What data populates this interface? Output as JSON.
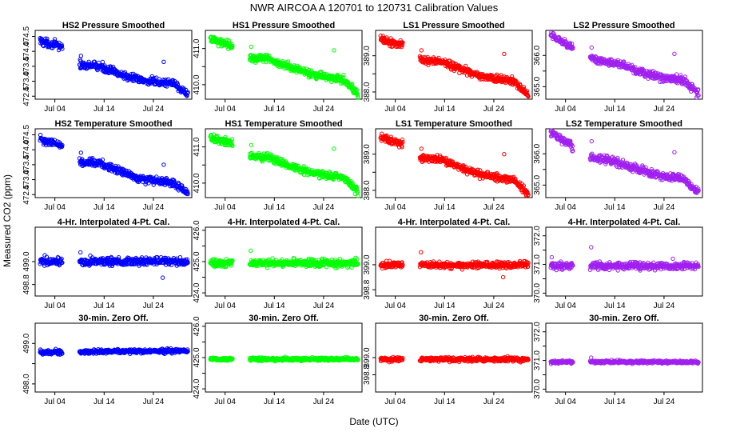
{
  "figure": {
    "title": "NWR   AIRCOA A   120701 to 120731   Calibration Values",
    "xlabel": "Date (UTC)",
    "ylabel": "Measured CO2 (ppm)",
    "x_tick_labels": [
      "Jul 04",
      "Jul 14",
      "Jul 24"
    ]
  },
  "chart_data": [
    {
      "type": "scatter",
      "title": "HS2 Pressure Smoothed",
      "series": "HS2",
      "color": "#0000ff",
      "row": 0,
      "col": 0,
      "ylim": [
        472.4,
        474.7
      ],
      "yticks": [
        472.5,
        473.0,
        473.5,
        474.0,
        474.5
      ],
      "ytick_labels": [
        "472.5",
        "473.0",
        "473.5",
        "474.0",
        "474.5"
      ],
      "xlim": [
        0,
        31.8
      ],
      "segments": [
        [
          1,
          5.5
        ],
        [
          9,
          31
        ]
      ],
      "trend": [
        [
          1,
          474.35
        ],
        [
          5.5,
          474.15
        ],
        [
          9,
          473.55
        ],
        [
          13,
          473.5
        ],
        [
          17,
          473.25
        ],
        [
          21,
          473.05
        ],
        [
          25,
          472.95
        ],
        [
          28,
          472.95
        ],
        [
          31,
          472.55
        ]
      ],
      "noise": 0.13,
      "outliers": [
        [
          9.3,
          473.85
        ],
        [
          26.1,
          473.65
        ]
      ]
    },
    {
      "type": "scatter",
      "title": "HS1 Pressure Smoothed",
      "series": "HS1",
      "color": "#00ff00",
      "row": 0,
      "col": 1,
      "ylim": [
        409.6,
        411.5
      ],
      "yticks": [
        410.0,
        410.5,
        411.0
      ],
      "ytick_labels": [
        "410.0",
        "",
        "411.0"
      ],
      "xlim": [
        0,
        31.8
      ],
      "segments": [
        [
          1,
          5.5
        ],
        [
          9,
          31
        ]
      ],
      "trend": [
        [
          1,
          411.25
        ],
        [
          5.5,
          411.1
        ],
        [
          9,
          410.75
        ],
        [
          13,
          410.7
        ],
        [
          17,
          410.5
        ],
        [
          21,
          410.3
        ],
        [
          25,
          410.2
        ],
        [
          28,
          410.15
        ],
        [
          31,
          409.75
        ]
      ],
      "noise": 0.1,
      "outliers": [
        [
          9.3,
          411.05
        ],
        [
          26.1,
          410.95
        ]
      ]
    },
    {
      "type": "scatter",
      "title": "LS1 Pressure Smoothed",
      "series": "LS1",
      "color": "#ff0000",
      "row": 0,
      "col": 2,
      "ylim": [
        387.8,
        389.7
      ],
      "yticks": [
        388.0,
        388.5,
        389.0
      ],
      "ytick_labels": [
        "388.0",
        "",
        "389.0"
      ],
      "xlim": [
        0,
        31.8
      ],
      "segments": [
        [
          1,
          5.5
        ],
        [
          9,
          31
        ]
      ],
      "trend": [
        [
          1,
          389.45
        ],
        [
          5.5,
          389.3
        ],
        [
          9,
          388.9
        ],
        [
          13,
          388.85
        ],
        [
          17,
          388.65
        ],
        [
          21,
          388.45
        ],
        [
          25,
          388.35
        ],
        [
          28,
          388.3
        ],
        [
          31,
          387.9
        ]
      ],
      "noise": 0.1,
      "outliers": [
        [
          9.3,
          389.15
        ],
        [
          26.1,
          389.05
        ]
      ]
    },
    {
      "type": "scatter",
      "title": "LS2 Pressure Smoothed",
      "series": "LS2",
      "color": "#a020f0",
      "row": 0,
      "col": 3,
      "ylim": [
        364.6,
        366.8
      ],
      "yticks": [
        365.0,
        365.5,
        366.0
      ],
      "ytick_labels": [
        "365.0",
        "",
        "366.0"
      ],
      "xlim": [
        0,
        31.8
      ],
      "segments": [
        [
          1,
          5.5
        ],
        [
          9,
          31
        ]
      ],
      "trend": [
        [
          1,
          366.65
        ],
        [
          5.5,
          366.25
        ],
        [
          9,
          365.9
        ],
        [
          13,
          365.8
        ],
        [
          17,
          365.6
        ],
        [
          21,
          365.4
        ],
        [
          25,
          365.25
        ],
        [
          28,
          365.2
        ],
        [
          31,
          364.75
        ]
      ],
      "noise": 0.12,
      "outliers": [
        [
          9.3,
          366.25
        ],
        [
          26.1,
          366.05
        ]
      ]
    },
    {
      "type": "scatter",
      "title": "HS2 Temperature Smoothed",
      "series": "HS2",
      "color": "#0000ff",
      "row": 1,
      "col": 0,
      "ylim": [
        472.4,
        474.7
      ],
      "yticks": [
        472.5,
        473.0,
        473.5,
        474.0,
        474.5
      ],
      "ytick_labels": [
        "472.5",
        "473.0",
        "473.5",
        "474.0",
        "474.5"
      ],
      "xlim": [
        0,
        31.8
      ],
      "segments": [
        [
          1,
          5.5
        ],
        [
          9,
          31
        ]
      ],
      "trend": [
        [
          1,
          474.35
        ],
        [
          5.5,
          474.15
        ],
        [
          9,
          473.6
        ],
        [
          13,
          473.55
        ],
        [
          17,
          473.3
        ],
        [
          21,
          473.05
        ],
        [
          25,
          472.95
        ],
        [
          28,
          472.9
        ],
        [
          31,
          472.55
        ]
      ],
      "noise": 0.12,
      "outliers": [
        [
          9.3,
          473.9
        ],
        [
          26.1,
          473.5
        ]
      ]
    },
    {
      "type": "scatter",
      "title": "HS1 Temperature Smoothed",
      "series": "HS1",
      "color": "#00ff00",
      "row": 1,
      "col": 1,
      "ylim": [
        409.6,
        411.5
      ],
      "yticks": [
        410.0,
        410.5,
        411.0
      ],
      "ytick_labels": [
        "410.0",
        "",
        "411.0"
      ],
      "xlim": [
        0,
        31.8
      ],
      "segments": [
        [
          1,
          5.5
        ],
        [
          9,
          31
        ]
      ],
      "trend": [
        [
          1,
          411.25
        ],
        [
          5.5,
          411.1
        ],
        [
          9,
          410.75
        ],
        [
          13,
          410.7
        ],
        [
          17,
          410.5
        ],
        [
          21,
          410.3
        ],
        [
          25,
          410.2
        ],
        [
          28,
          410.15
        ],
        [
          31,
          409.75
        ]
      ],
      "noise": 0.1,
      "outliers": [
        [
          9.3,
          411.05
        ],
        [
          26.1,
          410.95
        ]
      ]
    },
    {
      "type": "scatter",
      "title": "LS1 Temperature Smoothed",
      "series": "LS1",
      "color": "#ff0000",
      "row": 1,
      "col": 2,
      "ylim": [
        387.8,
        389.7
      ],
      "yticks": [
        388.0,
        388.5,
        389.0
      ],
      "ytick_labels": [
        "388.0",
        "",
        "389.0"
      ],
      "xlim": [
        0,
        31.8
      ],
      "segments": [
        [
          1,
          5.5
        ],
        [
          9,
          31
        ]
      ],
      "trend": [
        [
          1,
          389.45
        ],
        [
          5.5,
          389.3
        ],
        [
          9,
          388.9
        ],
        [
          13,
          388.85
        ],
        [
          17,
          388.65
        ],
        [
          21,
          388.45
        ],
        [
          25,
          388.35
        ],
        [
          28,
          388.3
        ],
        [
          31,
          387.9
        ]
      ],
      "noise": 0.1,
      "outliers": [
        [
          9.3,
          389.15
        ],
        [
          26.1,
          389.0
        ]
      ]
    },
    {
      "type": "scatter",
      "title": "LS2 Temperature Smoothed",
      "series": "LS2",
      "color": "#a020f0",
      "row": 1,
      "col": 3,
      "ylim": [
        364.6,
        366.8
      ],
      "yticks": [
        365.0,
        365.5,
        366.0
      ],
      "ytick_labels": [
        "365.0",
        "",
        "366.0"
      ],
      "xlim": [
        0,
        31.8
      ],
      "segments": [
        [
          1,
          5.5
        ],
        [
          9,
          31
        ]
      ],
      "trend": [
        [
          1,
          366.65
        ],
        [
          5.5,
          366.25
        ],
        [
          9,
          365.9
        ],
        [
          13,
          365.8
        ],
        [
          17,
          365.6
        ],
        [
          21,
          365.4
        ],
        [
          25,
          365.25
        ],
        [
          28,
          365.2
        ],
        [
          31,
          364.75
        ]
      ],
      "noise": 0.12,
      "outliers": [
        [
          9.3,
          366.4
        ],
        [
          26.1,
          366.05
        ]
      ]
    },
    {
      "type": "scatter",
      "title": "4-Hr. Interpolated 4-Pt. Cal.",
      "series": "HS2",
      "color": "#0000ff",
      "row": 2,
      "col": 0,
      "ylim": [
        498.7,
        499.3
      ],
      "yticks": [
        498.8,
        499.0
      ],
      "ytick_labels": [
        "498.8",
        "499.0"
      ],
      "xlim": [
        0,
        31.8
      ],
      "segments": [
        [
          1,
          5.5
        ],
        [
          9,
          31
        ]
      ],
      "trend": [
        [
          1,
          499.0
        ],
        [
          31,
          499.0
        ]
      ],
      "noise": 0.035,
      "outliers": [
        [
          9.2,
          499.08
        ],
        [
          25.9,
          498.86
        ]
      ]
    },
    {
      "type": "scatter",
      "title": "4-Hr. Interpolated 4-Pt. Cal.",
      "series": "HS1",
      "color": "#00ff00",
      "row": 2,
      "col": 1,
      "ylim": [
        423.9,
        426.1
      ],
      "yticks": [
        424.0,
        424.5,
        425.0,
        425.5,
        426.0
      ],
      "ytick_labels": [
        "424.0",
        "",
        "425.0",
        "",
        "426.0"
      ],
      "xlim": [
        0,
        31.8
      ],
      "segments": [
        [
          1,
          5.5
        ],
        [
          9,
          31
        ]
      ],
      "trend": [
        [
          1,
          424.95
        ],
        [
          31,
          424.95
        ]
      ],
      "noise": 0.12,
      "outliers": [
        [
          9.2,
          425.35
        ]
      ]
    },
    {
      "type": "scatter",
      "title": "4-Hr. Interpolated 4-Pt. Cal.",
      "series": "LS1",
      "color": "#ff0000",
      "row": 2,
      "col": 2,
      "ylim": [
        398.75,
        399.3
      ],
      "yticks": [
        398.8,
        399.0
      ],
      "ytick_labels": [
        "398.8",
        "399.0"
      ],
      "xlim": [
        0,
        31.8
      ],
      "segments": [
        [
          1,
          5.5
        ],
        [
          9,
          31
        ]
      ],
      "trend": [
        [
          1,
          399.0
        ],
        [
          31,
          399.0
        ]
      ],
      "noise": 0.025,
      "outliers": [
        [
          9.2,
          399.1
        ],
        [
          25.9,
          398.9
        ]
      ]
    },
    {
      "type": "scatter",
      "title": "4-Hr. Interpolated 4-Pt. Cal.",
      "series": "LS2",
      "color": "#a020f0",
      "row": 2,
      "col": 3,
      "ylim": [
        369.9,
        372.3
      ],
      "yticks": [
        370.0,
        370.5,
        371.0,
        371.5,
        372.0
      ],
      "ytick_labels": [
        "370.0",
        "",
        "371.0",
        "",
        "372.0"
      ],
      "xlim": [
        0,
        31.8
      ],
      "segments": [
        [
          1,
          5.5
        ],
        [
          9,
          31
        ]
      ],
      "trend": [
        [
          1,
          370.95
        ],
        [
          31,
          370.95
        ]
      ],
      "noise": 0.12,
      "outliers": [
        [
          9.2,
          371.6
        ],
        [
          1.2,
          371.25
        ],
        [
          25.8,
          371.2
        ]
      ]
    },
    {
      "type": "scatter",
      "title": "30-min. Zero Off.",
      "series": "HS2",
      "color": "#0000ff",
      "row": 3,
      "col": 0,
      "ylim": [
        497.8,
        499.5
      ],
      "yticks": [
        498.0,
        498.5,
        499.0
      ],
      "ytick_labels": [
        "498.0",
        "",
        "499.0"
      ],
      "xlim": [
        0,
        31.8
      ],
      "segments": [
        [
          1,
          5.5
        ],
        [
          9,
          31
        ]
      ],
      "trend": [
        [
          1,
          498.78
        ],
        [
          31,
          498.82
        ]
      ],
      "noise": 0.05,
      "outliers": []
    },
    {
      "type": "scatter",
      "title": "30-min. Zero Off.",
      "series": "HS1",
      "color": "#00ff00",
      "row": 3,
      "col": 1,
      "ylim": [
        423.9,
        426.1
      ],
      "yticks": [
        424.0,
        424.5,
        425.0,
        425.5,
        426.0
      ],
      "ytick_labels": [
        "424.0",
        "",
        "425.0",
        "",
        "426.0"
      ],
      "xlim": [
        0,
        31.8
      ],
      "segments": [
        [
          1,
          5.5
        ],
        [
          9,
          31
        ]
      ],
      "trend": [
        [
          1,
          424.95
        ],
        [
          31,
          424.95
        ]
      ],
      "noise": 0.05,
      "outliers": []
    },
    {
      "type": "scatter",
      "title": "30-min. Zero Off.",
      "series": "LS1",
      "color": "#ff0000",
      "row": 3,
      "col": 2,
      "ylim": [
        398.6,
        399.4
      ],
      "yticks": [
        398.8,
        399.0
      ],
      "ytick_labels": [
        "398.8",
        "399.0"
      ],
      "xlim": [
        0,
        31.8
      ],
      "segments": [
        [
          1,
          5.5
        ],
        [
          9,
          31
        ]
      ],
      "trend": [
        [
          1,
          398.98
        ],
        [
          31,
          398.98
        ]
      ],
      "noise": 0.025,
      "outliers": []
    },
    {
      "type": "scatter",
      "title": "30-min. Zero Off.",
      "series": "LS2",
      "color": "#a020f0",
      "row": 3,
      "col": 3,
      "ylim": [
        369.9,
        372.3
      ],
      "yticks": [
        370.0,
        370.5,
        371.0,
        371.5,
        372.0
      ],
      "ytick_labels": [
        "370.0",
        "",
        "371.0",
        "",
        "372.0"
      ],
      "xlim": [
        0,
        31.8
      ],
      "segments": [
        [
          1,
          5.5
        ],
        [
          9,
          31
        ]
      ],
      "trend": [
        [
          1,
          370.95
        ],
        [
          31,
          370.95
        ]
      ],
      "noise": 0.05,
      "outliers": [
        [
          9.2,
          371.1
        ]
      ]
    }
  ]
}
